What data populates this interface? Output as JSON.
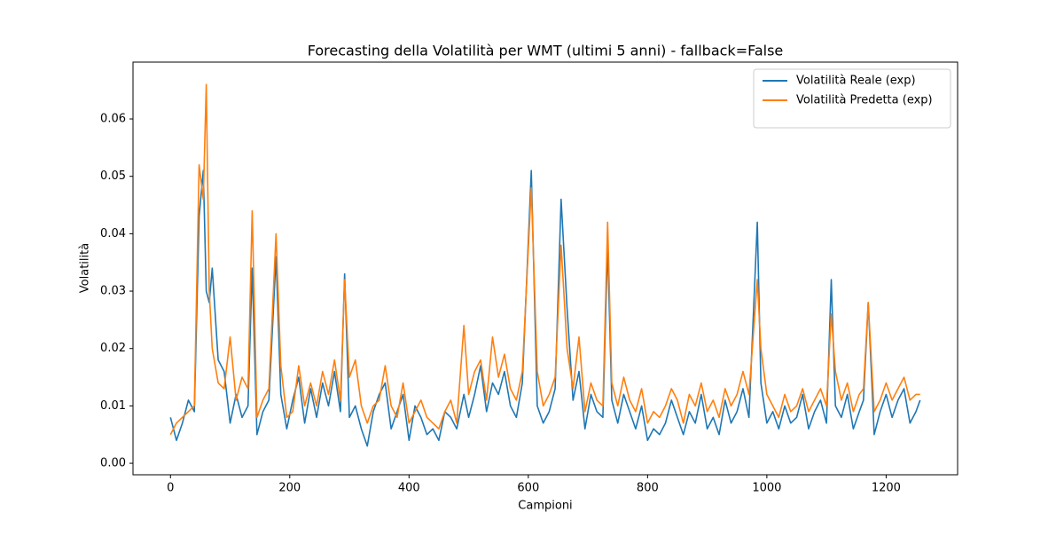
{
  "chart_data": {
    "type": "line",
    "title": "Forecasting della Volatilità per WMT (ultimi 5 anni) - fallback=False",
    "x_label": "Campioni",
    "y_label": "Volatilità",
    "x": [
      0,
      10,
      20,
      30,
      40,
      48,
      55,
      60,
      65,
      70,
      80,
      90,
      100,
      110,
      120,
      130,
      137,
      145,
      155,
      165,
      177,
      185,
      195,
      205,
      215,
      225,
      235,
      245,
      255,
      265,
      275,
      285,
      292,
      300,
      310,
      320,
      330,
      340,
      350,
      360,
      370,
      380,
      390,
      400,
      410,
      420,
      430,
      440,
      450,
      460,
      470,
      480,
      492,
      500,
      510,
      520,
      530,
      540,
      550,
      560,
      570,
      580,
      590,
      605,
      615,
      625,
      635,
      645,
      655,
      665,
      675,
      685,
      695,
      705,
      715,
      725,
      733,
      740,
      750,
      760,
      770,
      780,
      790,
      800,
      810,
      820,
      830,
      840,
      850,
      860,
      870,
      880,
      890,
      900,
      910,
      920,
      930,
      940,
      950,
      960,
      970,
      984,
      990,
      1000,
      1010,
      1020,
      1030,
      1040,
      1050,
      1060,
      1070,
      1080,
      1090,
      1100,
      1108,
      1115,
      1125,
      1135,
      1145,
      1155,
      1162,
      1170,
      1180,
      1190,
      1200,
      1210,
      1220,
      1230,
      1240,
      1250,
      1257
    ],
    "series": [
      {
        "name": "Volatilità Reale (exp)",
        "color": "#1f77b4",
        "values": [
          0.008,
          0.004,
          0.007,
          0.011,
          0.009,
          0.043,
          0.051,
          0.03,
          0.028,
          0.034,
          0.018,
          0.016,
          0.007,
          0.012,
          0.008,
          0.01,
          0.034,
          0.005,
          0.009,
          0.011,
          0.036,
          0.012,
          0.006,
          0.011,
          0.015,
          0.007,
          0.013,
          0.008,
          0.014,
          0.01,
          0.016,
          0.009,
          0.033,
          0.008,
          0.01,
          0.006,
          0.003,
          0.009,
          0.012,
          0.014,
          0.006,
          0.009,
          0.012,
          0.004,
          0.01,
          0.008,
          0.005,
          0.006,
          0.004,
          0.009,
          0.008,
          0.006,
          0.012,
          0.008,
          0.012,
          0.017,
          0.009,
          0.014,
          0.012,
          0.016,
          0.01,
          0.008,
          0.014,
          0.051,
          0.01,
          0.007,
          0.009,
          0.013,
          0.046,
          0.027,
          0.011,
          0.016,
          0.006,
          0.012,
          0.009,
          0.008,
          0.038,
          0.011,
          0.007,
          0.012,
          0.009,
          0.006,
          0.01,
          0.004,
          0.006,
          0.005,
          0.007,
          0.011,
          0.008,
          0.005,
          0.009,
          0.007,
          0.012,
          0.006,
          0.008,
          0.005,
          0.011,
          0.007,
          0.009,
          0.013,
          0.008,
          0.042,
          0.014,
          0.007,
          0.009,
          0.006,
          0.01,
          0.007,
          0.008,
          0.012,
          0.006,
          0.009,
          0.011,
          0.007,
          0.032,
          0.01,
          0.008,
          0.012,
          0.006,
          0.009,
          0.011,
          0.028,
          0.005,
          0.009,
          0.012,
          0.008,
          0.011,
          0.013,
          0.007,
          0.009,
          0.011
        ]
      },
      {
        "name": "Volatilità Predetta (exp)",
        "color": "#ff7f0e",
        "values": [
          0.005,
          0.007,
          0.008,
          0.009,
          0.01,
          0.052,
          0.046,
          0.066,
          0.03,
          0.02,
          0.014,
          0.013,
          0.022,
          0.011,
          0.015,
          0.013,
          0.044,
          0.008,
          0.011,
          0.013,
          0.04,
          0.017,
          0.008,
          0.009,
          0.017,
          0.01,
          0.014,
          0.01,
          0.016,
          0.012,
          0.018,
          0.011,
          0.032,
          0.015,
          0.018,
          0.01,
          0.007,
          0.01,
          0.011,
          0.017,
          0.01,
          0.008,
          0.014,
          0.007,
          0.009,
          0.011,
          0.008,
          0.007,
          0.006,
          0.009,
          0.011,
          0.007,
          0.024,
          0.012,
          0.016,
          0.018,
          0.011,
          0.022,
          0.015,
          0.019,
          0.013,
          0.011,
          0.016,
          0.048,
          0.016,
          0.01,
          0.012,
          0.015,
          0.038,
          0.02,
          0.013,
          0.022,
          0.009,
          0.014,
          0.011,
          0.01,
          0.042,
          0.014,
          0.01,
          0.015,
          0.011,
          0.009,
          0.013,
          0.007,
          0.009,
          0.008,
          0.01,
          0.013,
          0.011,
          0.007,
          0.012,
          0.01,
          0.014,
          0.009,
          0.011,
          0.008,
          0.013,
          0.01,
          0.012,
          0.016,
          0.012,
          0.032,
          0.02,
          0.012,
          0.01,
          0.008,
          0.012,
          0.009,
          0.01,
          0.013,
          0.009,
          0.011,
          0.013,
          0.01,
          0.026,
          0.016,
          0.011,
          0.014,
          0.009,
          0.012,
          0.013,
          0.028,
          0.009,
          0.011,
          0.014,
          0.011,
          0.013,
          0.015,
          0.011,
          0.012,
          0.012
        ]
      }
    ],
    "xlim": [
      -62.85,
      1319.85
    ],
    "xticks": [
      0,
      200,
      400,
      600,
      800,
      1000,
      1200
    ],
    "ylim": [
      -0.002,
      0.0699
    ],
    "yticks": [
      {
        "value": 0,
        "label": "0.00"
      },
      {
        "value": 0.01,
        "label": "0.01"
      },
      {
        "value": 0.02,
        "label": "0.02"
      },
      {
        "value": 0.03,
        "label": "0.03"
      },
      {
        "value": 0.04,
        "label": "0.04"
      },
      {
        "value": 0.05,
        "label": "0.05"
      },
      {
        "value": 0.06,
        "label": "0.06"
      }
    ],
    "legend": "upper right"
  }
}
